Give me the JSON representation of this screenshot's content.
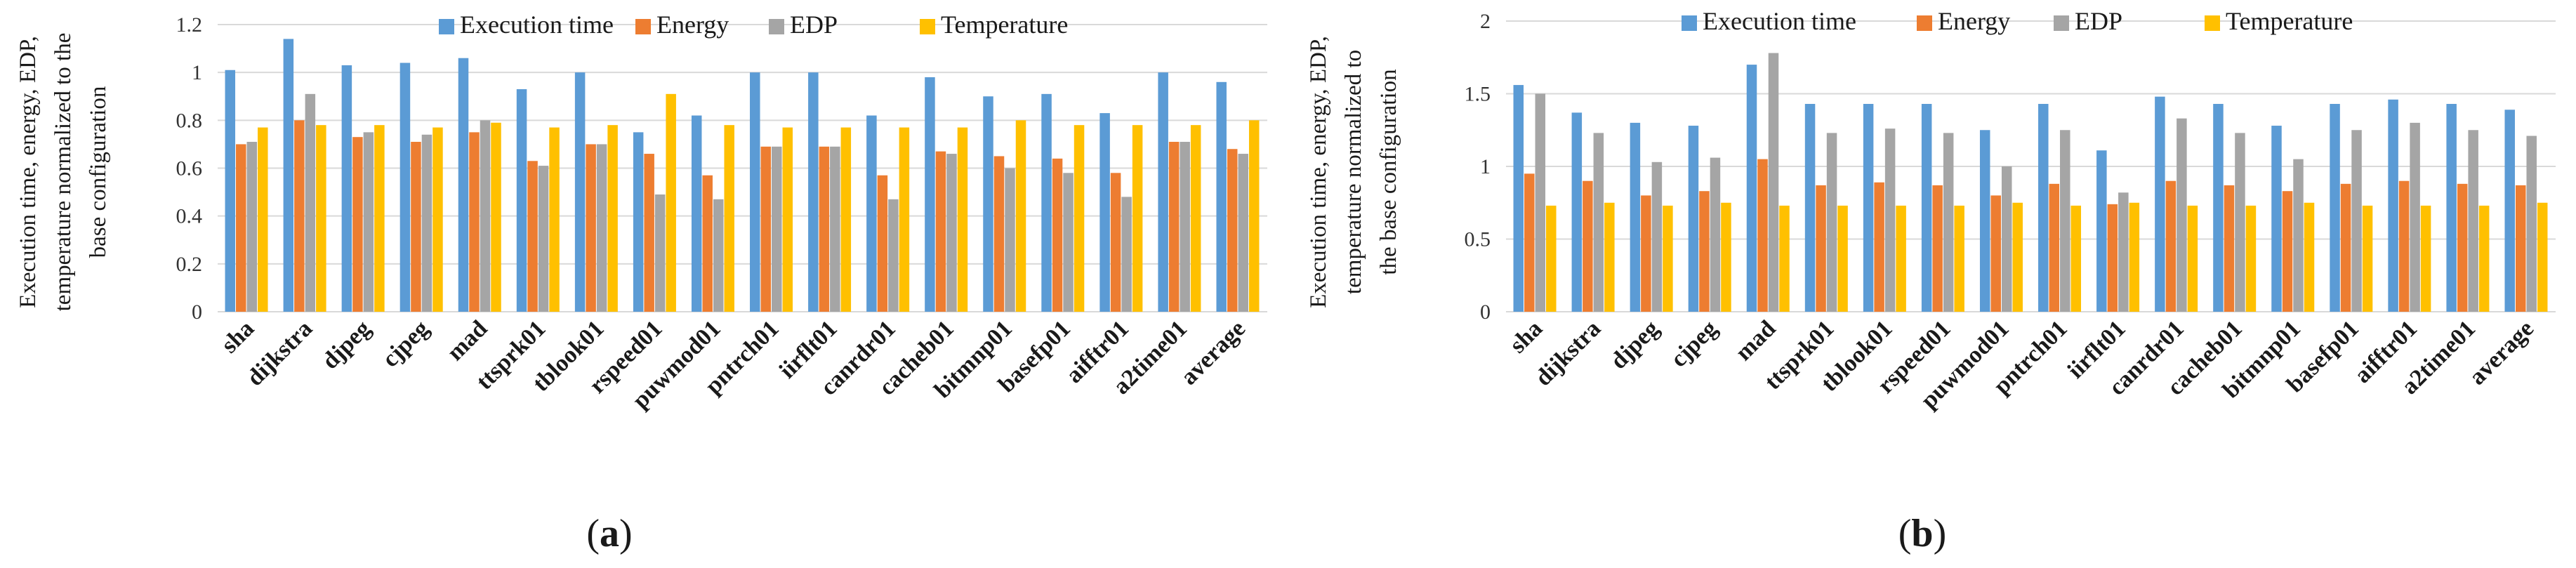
{
  "series_colors": [
    "#5b9bd5",
    "#ed7d31",
    "#a5a5a5",
    "#ffc000"
  ],
  "chart_data": [
    {
      "type": "bar",
      "panel_label": "a",
      "ylabel_lines": [
        "Execution time, energy, EDP,",
        "temperature normalized to the",
        "base configuration"
      ],
      "categories": [
        "sha",
        "dijkstra",
        "djpeg",
        "cjpeg",
        "mad",
        "ttsprk01",
        "tblook01",
        "rspeed01",
        "puwmod01",
        "pntrch01",
        "iirflt01",
        "canrdr01",
        "cacheb01",
        "bitmnp01",
        "basefp01",
        "aifftr01",
        "a2time01",
        "average"
      ],
      "ylim": [
        0,
        1.2
      ],
      "yticks": [
        "0",
        "0.2",
        "0.4",
        "0.6",
        "0.8",
        "1",
        "1.2"
      ],
      "legend_position": "top-center",
      "series": [
        {
          "name": "Execution time",
          "values": [
            1.01,
            1.14,
            1.03,
            1.04,
            1.06,
            0.93,
            1.0,
            0.75,
            0.82,
            1.0,
            1.0,
            0.82,
            0.98,
            0.9,
            0.91,
            0.83,
            1.0,
            0.96
          ]
        },
        {
          "name": "Energy",
          "values": [
            0.7,
            0.8,
            0.73,
            0.71,
            0.75,
            0.63,
            0.7,
            0.66,
            0.57,
            0.69,
            0.69,
            0.57,
            0.67,
            0.65,
            0.64,
            0.58,
            0.71,
            0.68
          ]
        },
        {
          "name": "EDP",
          "values": [
            0.71,
            0.91,
            0.75,
            0.74,
            0.8,
            0.61,
            0.7,
            0.49,
            0.47,
            0.69,
            0.69,
            0.47,
            0.66,
            0.6,
            0.58,
            0.48,
            0.71,
            0.66
          ]
        },
        {
          "name": "Temperature",
          "values": [
            0.77,
            0.78,
            0.78,
            0.77,
            0.79,
            0.77,
            0.78,
            0.91,
            0.78,
            0.77,
            0.77,
            0.77,
            0.77,
            0.8,
            0.78,
            0.78,
            0.78,
            0.8
          ]
        }
      ]
    },
    {
      "type": "bar",
      "panel_label": "b",
      "ylabel_lines": [
        "Execution time, energy, EDP,",
        "temperature normalized to",
        "the base configuration"
      ],
      "categories": [
        "sha",
        "dijkstra",
        "djpeg",
        "cjpeg",
        "mad",
        "ttsprk01",
        "tblook01",
        "rspeed01",
        "puwmod01",
        "pntrch01",
        "iirflt01",
        "canrdr01",
        "cacheb01",
        "bitmnp01",
        "basefp01",
        "aifftr01",
        "a2time01",
        "average"
      ],
      "ylim": [
        0,
        2
      ],
      "yticks": [
        "0",
        "0.5",
        "1",
        "1.5",
        "2"
      ],
      "legend_position": "top-center",
      "series": [
        {
          "name": "Execution time",
          "values": [
            1.56,
            1.37,
            1.3,
            1.28,
            1.7,
            1.43,
            1.43,
            1.43,
            1.25,
            1.43,
            1.11,
            1.48,
            1.43,
            1.28,
            1.43,
            1.46,
            1.43,
            1.39
          ]
        },
        {
          "name": "Energy",
          "values": [
            0.95,
            0.9,
            0.8,
            0.83,
            1.05,
            0.87,
            0.89,
            0.87,
            0.8,
            0.88,
            0.74,
            0.9,
            0.87,
            0.83,
            0.88,
            0.9,
            0.88,
            0.87
          ]
        },
        {
          "name": "EDP",
          "values": [
            1.5,
            1.23,
            1.03,
            1.06,
            1.78,
            1.23,
            1.26,
            1.23,
            1.0,
            1.25,
            0.82,
            1.33,
            1.23,
            1.05,
            1.25,
            1.3,
            1.25,
            1.21
          ]
        },
        {
          "name": "Temperature",
          "values": [
            0.73,
            0.75,
            0.73,
            0.75,
            0.73,
            0.73,
            0.73,
            0.73,
            0.75,
            0.73,
            0.75,
            0.73,
            0.73,
            0.75,
            0.73,
            0.73,
            0.73,
            0.75
          ]
        }
      ]
    }
  ]
}
